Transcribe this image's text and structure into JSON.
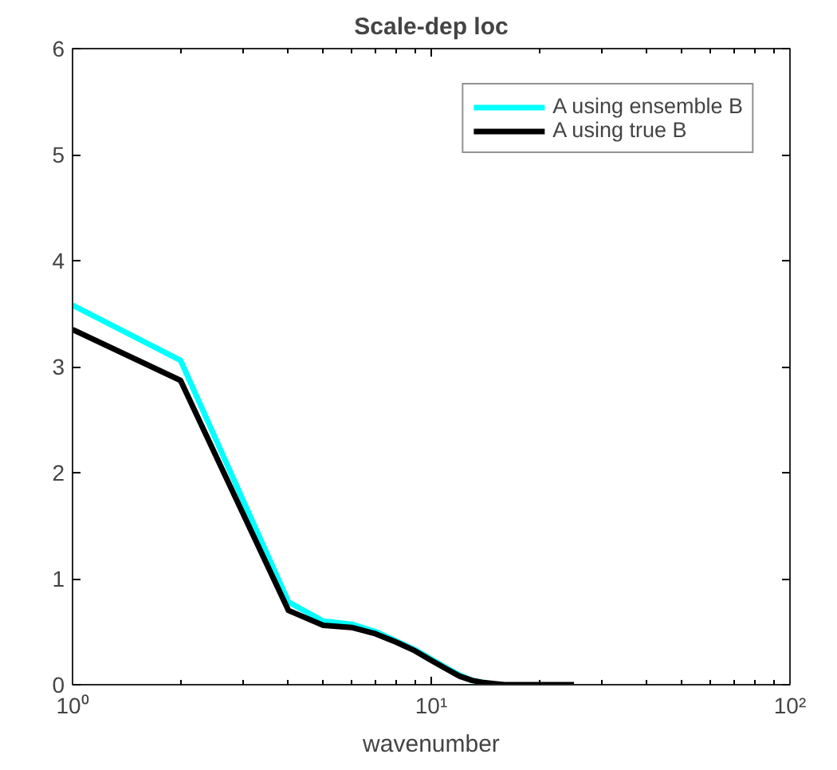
{
  "chart_data": {
    "type": "line",
    "title": "Scale-dep loc",
    "xlabel": "wavenumber",
    "log": "x",
    "xlim": [
      1,
      100
    ],
    "xticks": [
      {
        "value": 1,
        "label": "10⁰"
      },
      {
        "value": 10,
        "label": "10¹"
      },
      {
        "value": 100,
        "label": "10²"
      }
    ],
    "ylim": [
      0,
      6
    ],
    "yticks": [
      0,
      1,
      2,
      3,
      4,
      5,
      6
    ],
    "grid": false,
    "legend": "top right",
    "marker": "none",
    "line_style": "solid",
    "x": [
      1,
      2,
      4,
      5,
      6,
      7,
      8,
      9,
      10,
      11,
      12,
      13,
      14,
      15,
      16,
      18,
      20,
      22,
      25
    ],
    "series": [
      {
        "name": "A using ensemble B",
        "color": "#00ffff",
        "values": [
          3.58,
          3.06,
          0.78,
          0.6,
          0.57,
          0.5,
          0.41,
          0.33,
          0.24,
          0.16,
          0.09,
          0.04,
          0.02,
          null,
          null,
          null,
          null,
          null,
          null
        ]
      },
      {
        "name": "A using true B",
        "color": "#000000",
        "values": [
          3.35,
          2.87,
          0.7,
          0.56,
          0.54,
          0.48,
          0.4,
          0.32,
          0.23,
          0.15,
          0.08,
          0.04,
          0.02,
          0.01,
          0,
          0,
          0,
          0,
          0
        ]
      }
    ]
  }
}
